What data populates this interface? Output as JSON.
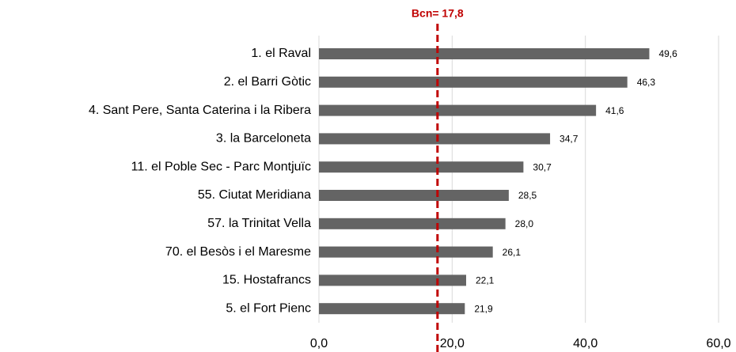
{
  "chart_data": {
    "type": "bar",
    "orientation": "horizontal",
    "categories": [
      "1. el Raval",
      "2. el Barri Gòtic",
      "4. Sant Pere, Santa Caterina i la Ribera",
      "3. la Barceloneta",
      "11. el Poble Sec - Parc Montjuïc",
      "55. Ciutat Meridiana",
      "57. la Trinitat Vella",
      "70. el Besòs i el Maresme",
      "15. Hostafrancs",
      "5. el Fort Pienc"
    ],
    "values": [
      49.6,
      46.3,
      41.6,
      34.7,
      30.7,
      28.5,
      28.0,
      26.1,
      22.1,
      21.9
    ],
    "value_labels": [
      "49,6",
      "46,3",
      "41,6",
      "34,7",
      "30,7",
      "28,5",
      "28,0",
      "26,1",
      "22,1",
      "21,9"
    ],
    "color": "#646464",
    "xlim": [
      0,
      60
    ],
    "xticks": [
      {
        "value": 0,
        "label": "0,0"
      },
      {
        "value": 20,
        "label": "20,0"
      },
      {
        "value": 40,
        "label": "40,0"
      },
      {
        "value": 60,
        "label": "60,0"
      }
    ],
    "grid": true,
    "reference_line": {
      "value": 17.8,
      "label": "Bcn= 17,8",
      "color": "#c00000"
    }
  }
}
